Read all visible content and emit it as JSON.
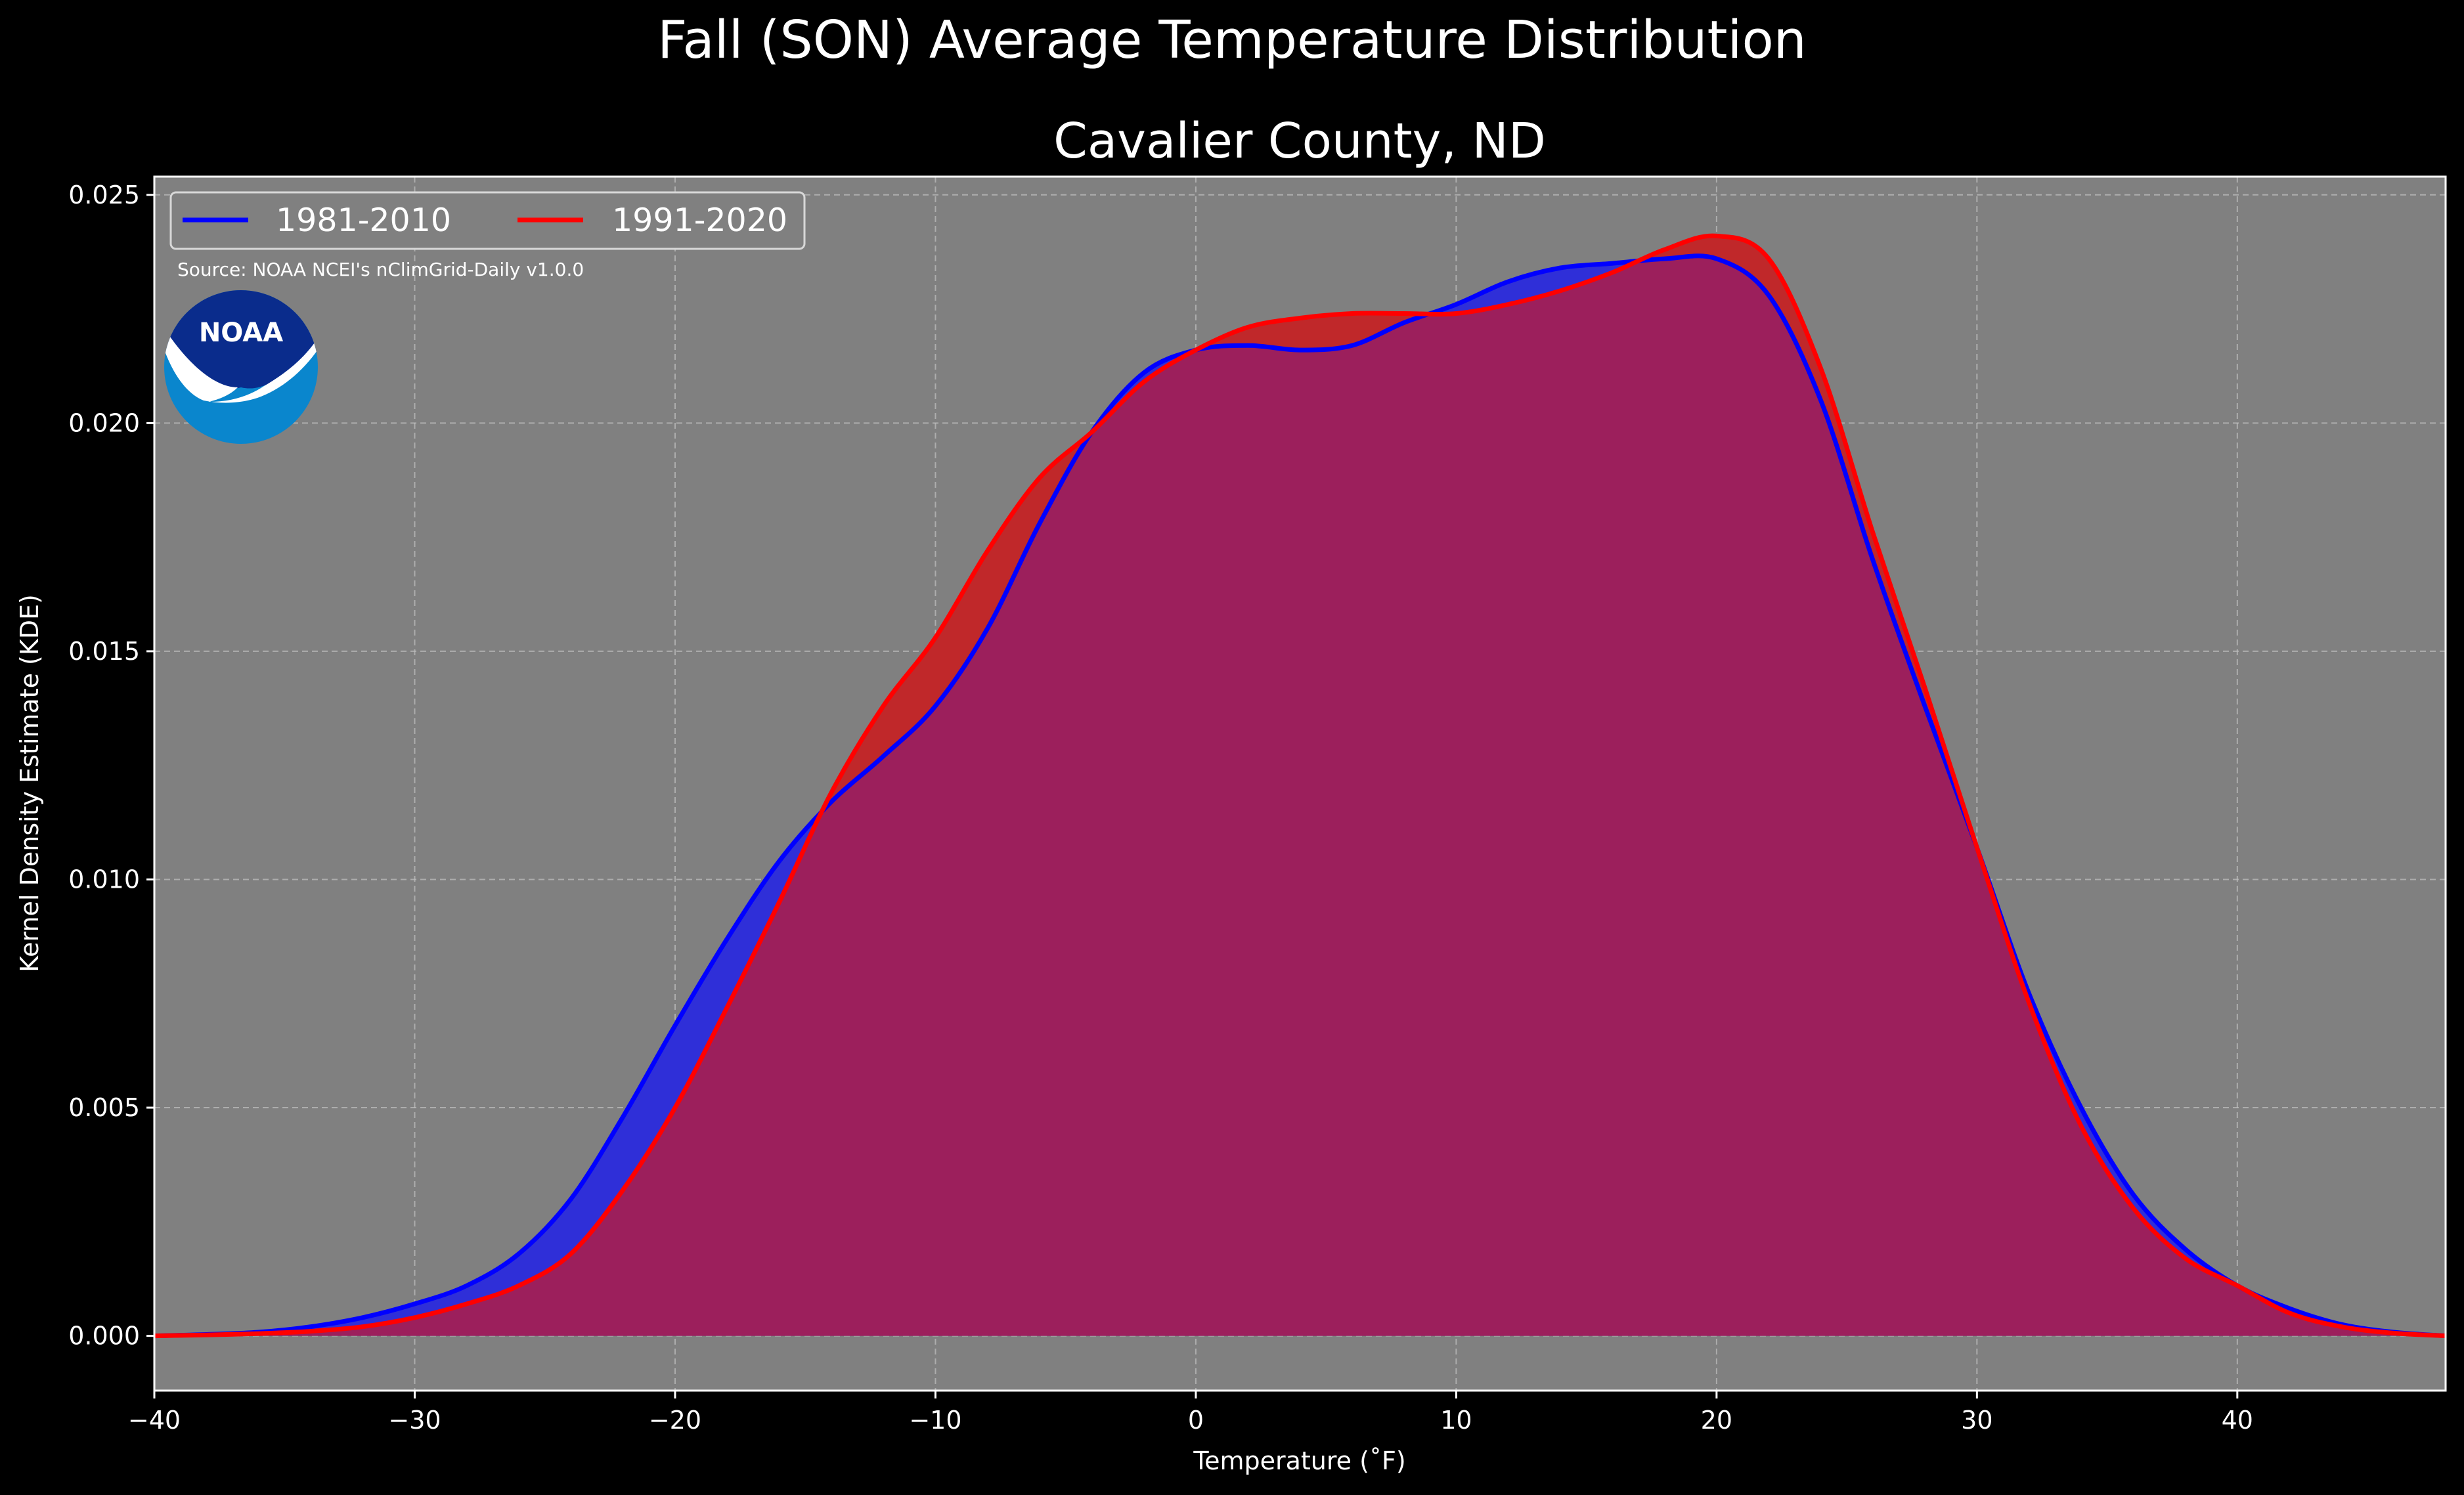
{
  "page": {
    "suptitle": "Fall (SON) Average Temperature Distribution",
    "source": "Source: NOAA NCEI's nClimGrid-Daily v1.0.0",
    "logo_text": "NOAA"
  },
  "colors": {
    "figure_bg": "#000000",
    "axes_bg": "#808080",
    "series_1981_2010": "#0000ff",
    "series_1991_2020": "#ff0000",
    "fill_1981_2010": "#2f2fd8",
    "fill_1991_2020": "#c0282a",
    "overlap_fill": "#9c1f5c",
    "noaa_dark_blue": "#0a2c8c",
    "noaa_light_blue": "#0a86cd"
  },
  "chart_data": {
    "type": "area",
    "title": "Cavalier County, ND",
    "xlabel": "Temperature (˚F)",
    "ylabel": "Kernel Density Estimate (KDE)",
    "xlim": [
      -40,
      48
    ],
    "ylim": [
      -0.0012,
      0.0254
    ],
    "xticks": [
      -40,
      -30,
      -20,
      -10,
      0,
      10,
      20,
      30,
      40
    ],
    "xtick_labels": [
      "−40",
      "−30",
      "−20",
      "−10",
      "0",
      "10",
      "20",
      "30",
      "40"
    ],
    "yticks": [
      0.0,
      0.005,
      0.01,
      0.015,
      0.02,
      0.025
    ],
    "ytick_labels": [
      "0.000",
      "0.005",
      "0.010",
      "0.015",
      "0.020",
      "0.025"
    ],
    "grid": true,
    "legend_position": "upper-left",
    "legend_columns": 2,
    "series": [
      {
        "name": "1981-2010",
        "color": "#0000ff",
        "x": [
          -40,
          -38,
          -36,
          -34,
          -32,
          -30,
          -28,
          -26,
          -24,
          -22,
          -20,
          -18,
          -16,
          -14,
          -12,
          -10,
          -8,
          -6,
          -4,
          -2,
          0,
          2,
          4,
          6,
          8,
          10,
          12,
          14,
          16,
          18,
          20,
          22,
          24,
          26,
          28,
          30,
          32,
          34,
          36,
          38,
          40,
          42,
          44,
          46,
          48
        ],
        "y": [
          0.0,
          3e-05,
          8e-05,
          0.0002,
          0.0004,
          0.0007,
          0.0011,
          0.0018,
          0.003,
          0.0048,
          0.0068,
          0.0087,
          0.0104,
          0.0117,
          0.0127,
          0.0138,
          0.0155,
          0.0178,
          0.0198,
          0.0211,
          0.0216,
          0.0217,
          0.0216,
          0.0217,
          0.0222,
          0.0226,
          0.0231,
          0.0234,
          0.0235,
          0.0236,
          0.0236,
          0.0228,
          0.0205,
          0.017,
          0.0138,
          0.0107,
          0.0075,
          0.005,
          0.0031,
          0.0019,
          0.0011,
          0.0006,
          0.00025,
          8e-05,
          0.0
        ]
      },
      {
        "name": "1991-2020",
        "color": "#ff0000",
        "x": [
          -40,
          -38,
          -36,
          -34,
          -32,
          -30,
          -28,
          -26,
          -24,
          -22,
          -20,
          -18,
          -16,
          -14,
          -12,
          -10,
          -8,
          -6,
          -4,
          -2,
          0,
          2,
          4,
          6,
          8,
          10,
          12,
          14,
          16,
          18,
          20,
          22,
          24,
          26,
          28,
          30,
          32,
          34,
          36,
          38,
          40,
          42,
          44,
          46,
          48
        ],
        "y": [
          0.0,
          2e-05,
          5e-05,
          0.0001,
          0.0002,
          0.0004,
          0.0007,
          0.0011,
          0.0018,
          0.0032,
          0.005,
          0.0072,
          0.0095,
          0.0119,
          0.0138,
          0.0153,
          0.0172,
          0.0188,
          0.0198,
          0.0209,
          0.0216,
          0.0221,
          0.0223,
          0.0224,
          0.0224,
          0.0224,
          0.0226,
          0.0229,
          0.0233,
          0.0238,
          0.0241,
          0.0236,
          0.0212,
          0.0176,
          0.0142,
          0.0107,
          0.0073,
          0.0046,
          0.0028,
          0.0017,
          0.0011,
          0.0005,
          0.0002,
          6e-05,
          0.0
        ]
      }
    ]
  }
}
